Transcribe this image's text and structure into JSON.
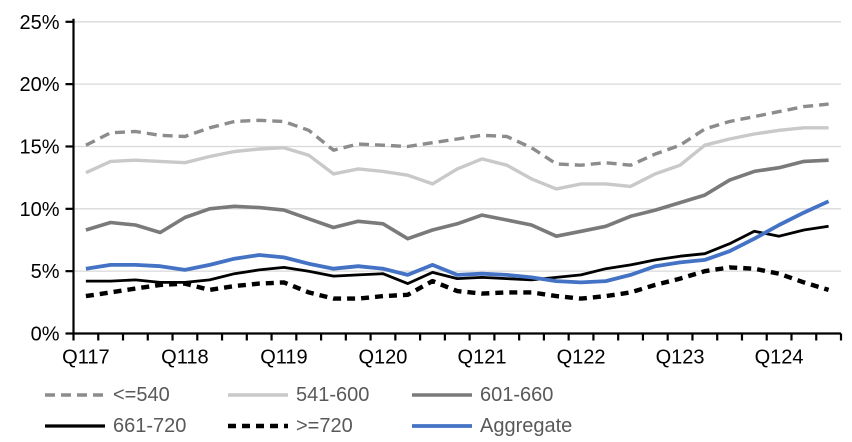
{
  "chart_data": {
    "type": "line",
    "title": "",
    "grid": "horizontal",
    "gridline_color": "#d9d9d9",
    "axis_color": "#000000",
    "tick_label_color": "#000000",
    "legend_text_color": "#595959",
    "y_axis": {
      "min": 0,
      "max": 25,
      "step": 5,
      "tick_labels": [
        "0%",
        "5%",
        "10%",
        "15%",
        "20%",
        "25%"
      ]
    },
    "x_axis": {
      "n_points": 31,
      "labels": [
        "Q117",
        "Q118",
        "Q119",
        "Q120",
        "Q121",
        "Q122",
        "Q123",
        "Q124"
      ],
      "label_indices": [
        0,
        4,
        8,
        12,
        16,
        20,
        24,
        28
      ]
    },
    "legend_position": "bottom",
    "draw_order": [
      0,
      1,
      2,
      4,
      3,
      5
    ],
    "series": [
      {
        "name": "<=540",
        "color": "#8c8c8c",
        "style": {
          "dash": "10 6",
          "width": 3.4
        },
        "values": [
          15.1,
          16.1,
          16.2,
          15.9,
          15.8,
          16.5,
          17.0,
          17.1,
          17.0,
          16.3,
          14.7,
          15.2,
          15.1,
          15.0,
          15.3,
          15.6,
          15.9,
          15.8,
          14.9,
          13.6,
          13.5,
          13.7,
          13.5,
          14.4,
          15.1,
          16.4,
          17.0,
          17.4,
          17.8,
          18.2,
          18.4
        ]
      },
      {
        "name": "541-600",
        "color": "#c9c9c9",
        "style": {
          "dash": "",
          "width": 3.4
        },
        "values": [
          12.9,
          13.8,
          13.9,
          13.8,
          13.7,
          14.2,
          14.6,
          14.8,
          14.9,
          14.3,
          12.8,
          13.2,
          13.0,
          12.7,
          12.0,
          13.2,
          14.0,
          13.5,
          12.4,
          11.6,
          12.0,
          12.0,
          11.8,
          12.8,
          13.5,
          15.1,
          15.6,
          16.0,
          16.3,
          16.5,
          16.5
        ]
      },
      {
        "name": "601-660",
        "color": "#7a7a7a",
        "style": {
          "dash": "",
          "width": 3.6
        },
        "values": [
          8.3,
          8.9,
          8.7,
          8.1,
          9.3,
          10.0,
          10.2,
          10.1,
          9.9,
          9.2,
          8.5,
          9.0,
          8.8,
          7.6,
          8.3,
          8.8,
          9.5,
          9.1,
          8.7,
          7.8,
          8.2,
          8.6,
          9.4,
          9.9,
          10.5,
          11.1,
          12.3,
          13.0,
          13.3,
          13.8,
          13.9
        ]
      },
      {
        "name": "661-720",
        "color": "#000000",
        "style": {
          "dash": "",
          "width": 2.8
        },
        "values": [
          4.2,
          4.2,
          4.3,
          4.1,
          4.1,
          4.3,
          4.8,
          5.1,
          5.3,
          5.0,
          4.6,
          4.7,
          4.8,
          4.0,
          4.9,
          4.4,
          4.5,
          4.4,
          4.3,
          4.5,
          4.7,
          5.2,
          5.5,
          5.9,
          6.2,
          6.4,
          7.2,
          8.2,
          7.8,
          8.3,
          8.6
        ]
      },
      {
        "name": ">=720",
        "color": "#000000",
        "style": {
          "dash": "8 6",
          "width": 4.4
        },
        "values": [
          3.0,
          3.3,
          3.6,
          3.9,
          4.0,
          3.5,
          3.8,
          4.0,
          4.1,
          3.3,
          2.8,
          2.8,
          3.0,
          3.1,
          4.2,
          3.4,
          3.2,
          3.3,
          3.3,
          3.0,
          2.8,
          3.0,
          3.3,
          3.9,
          4.4,
          5.0,
          5.3,
          5.2,
          4.8,
          4.1,
          3.5
        ]
      },
      {
        "name": "Aggregate",
        "color": "#4472c4",
        "style": {
          "dash": "",
          "width": 3.8
        },
        "values": [
          5.2,
          5.5,
          5.5,
          5.4,
          5.1,
          5.5,
          6.0,
          6.3,
          6.1,
          5.6,
          5.2,
          5.4,
          5.2,
          4.7,
          5.5,
          4.7,
          4.8,
          4.7,
          4.5,
          4.2,
          4.1,
          4.2,
          4.7,
          5.4,
          5.7,
          5.9,
          6.6,
          7.6,
          8.7,
          9.7,
          10.6
        ]
      }
    ]
  }
}
